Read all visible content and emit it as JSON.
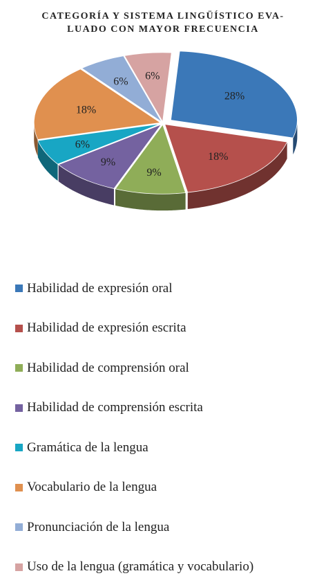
{
  "chart_data": {
    "type": "pie",
    "title_lines": [
      "Categoría y sistema lingüístico eva-",
      "luado con mayor frecuencia"
    ],
    "slices": [
      {
        "label": "Habilidad de expresión oral",
        "value": 28,
        "display": "28%",
        "color": "#3b78b8"
      },
      {
        "label": "Habilidad de expresión escrita",
        "value": 18,
        "display": "18%",
        "color": "#b5504c"
      },
      {
        "label": "Habilidad de comprensión oral",
        "value": 9,
        "display": "9%",
        "color": "#8fad58"
      },
      {
        "label": "Habilidad de comprensión escrita",
        "value": 9,
        "display": "9%",
        "color": "#7462a0"
      },
      {
        "label": "Gramática de la lengua",
        "value": 6,
        "display": "6%",
        "color": "#18a6c4"
      },
      {
        "label": "Vocabulario de la lengua",
        "value": 18,
        "display": "18%",
        "color": "#e0904f"
      },
      {
        "label": "Pronunciación de la lengua",
        "value": 6,
        "display": "6%",
        "color": "#92add6"
      },
      {
        "label": "Uso de la lengua (gramática y vocabulario)",
        "value": 6,
        "display": "6%",
        "color": "#d6a3a2"
      }
    ],
    "legend_position": "bottom"
  }
}
